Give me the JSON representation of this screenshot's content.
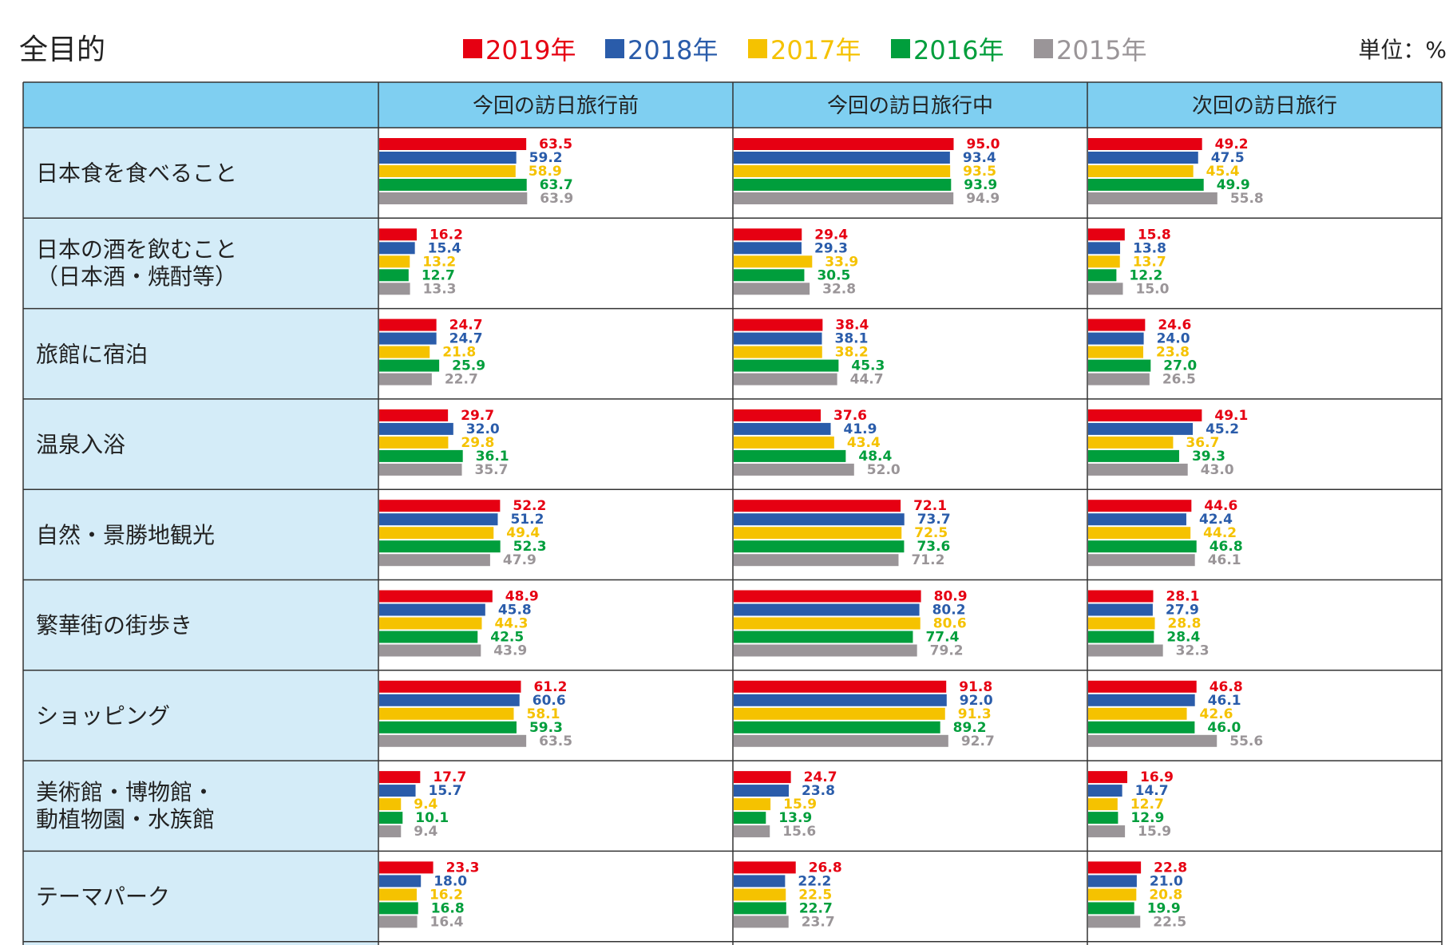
{
  "title": "全目的",
  "unit": "単位：%",
  "legend": [
    {
      "label": "2019年",
      "color": "#e60012"
    },
    {
      "label": "2018年",
      "color": "#2a5caa"
    },
    {
      "label": "2017年",
      "color": "#f5c200"
    },
    {
      "label": "2016年",
      "color": "#009e3c"
    },
    {
      "label": "2015年",
      "color": "#9a9598"
    }
  ],
  "chart_data": {
    "type": "bar",
    "orientation": "horizontal",
    "title": "全目的",
    "unit": "単位：%",
    "columns": [
      "今回の訪日旅行前",
      "今回の訪日旅行中",
      "次回の訪日旅行"
    ],
    "series_names": [
      "2019年",
      "2018年",
      "2017年",
      "2016年",
      "2015年"
    ],
    "rows": [
      {
        "label": [
          "日本食を食べること"
        ],
        "values": [
          [
            63.5,
            59.2,
            58.9,
            63.7,
            63.9
          ],
          [
            95.0,
            93.4,
            93.5,
            93.9,
            94.9
          ],
          [
            49.2,
            47.5,
            45.4,
            49.9,
            55.8
          ]
        ]
      },
      {
        "label": [
          "日本の酒を飲むこと",
          "（日本酒・焼酎等）"
        ],
        "values": [
          [
            16.2,
            15.4,
            13.2,
            12.7,
            13.3
          ],
          [
            29.4,
            29.3,
            33.9,
            30.5,
            32.8
          ],
          [
            15.8,
            13.8,
            13.7,
            12.2,
            15.0
          ]
        ]
      },
      {
        "label": [
          "旅館に宿泊"
        ],
        "values": [
          [
            24.7,
            24.7,
            21.8,
            25.9,
            22.7
          ],
          [
            38.4,
            38.1,
            38.2,
            45.3,
            44.7
          ],
          [
            24.6,
            24.0,
            23.8,
            27.0,
            26.5
          ]
        ]
      },
      {
        "label": [
          "温泉入浴"
        ],
        "values": [
          [
            29.7,
            32.0,
            29.8,
            36.1,
            35.7
          ],
          [
            37.6,
            41.9,
            43.4,
            48.4,
            52.0
          ],
          [
            49.1,
            45.2,
            36.7,
            39.3,
            43.0
          ]
        ]
      },
      {
        "label": [
          "自然・景勝地観光"
        ],
        "values": [
          [
            52.2,
            51.2,
            49.4,
            52.3,
            47.9
          ],
          [
            72.1,
            73.7,
            72.5,
            73.6,
            71.2
          ],
          [
            44.6,
            42.4,
            44.2,
            46.8,
            46.1
          ]
        ]
      },
      {
        "label": [
          "繁華街の街歩き"
        ],
        "values": [
          [
            48.9,
            45.8,
            44.3,
            42.5,
            43.9
          ],
          [
            80.9,
            80.2,
            80.6,
            77.4,
            79.2
          ],
          [
            28.1,
            27.9,
            28.8,
            28.4,
            32.3
          ]
        ]
      },
      {
        "label": [
          "ショッピング"
        ],
        "values": [
          [
            61.2,
            60.6,
            58.1,
            59.3,
            63.5
          ],
          [
            91.8,
            92.0,
            91.3,
            89.2,
            92.7
          ],
          [
            46.8,
            46.1,
            42.6,
            46.0,
            55.6
          ]
        ]
      },
      {
        "label": [
          "美術館・博物館・",
          "動植物園・水族館"
        ],
        "values": [
          [
            17.7,
            15.7,
            9.4,
            10.1,
            9.4
          ],
          [
            24.7,
            23.8,
            15.9,
            13.9,
            15.6
          ],
          [
            16.9,
            14.7,
            12.7,
            12.9,
            15.9
          ]
        ]
      },
      {
        "label": [
          "テーマパーク"
        ],
        "values": [
          [
            23.3,
            18.0,
            16.2,
            16.8,
            16.4
          ],
          [
            26.8,
            22.2,
            22.5,
            22.7,
            23.7
          ],
          [
            22.8,
            21.0,
            20.8,
            19.9,
            22.5
          ]
        ]
      }
    ],
    "xlim": [
      0,
      100
    ]
  }
}
